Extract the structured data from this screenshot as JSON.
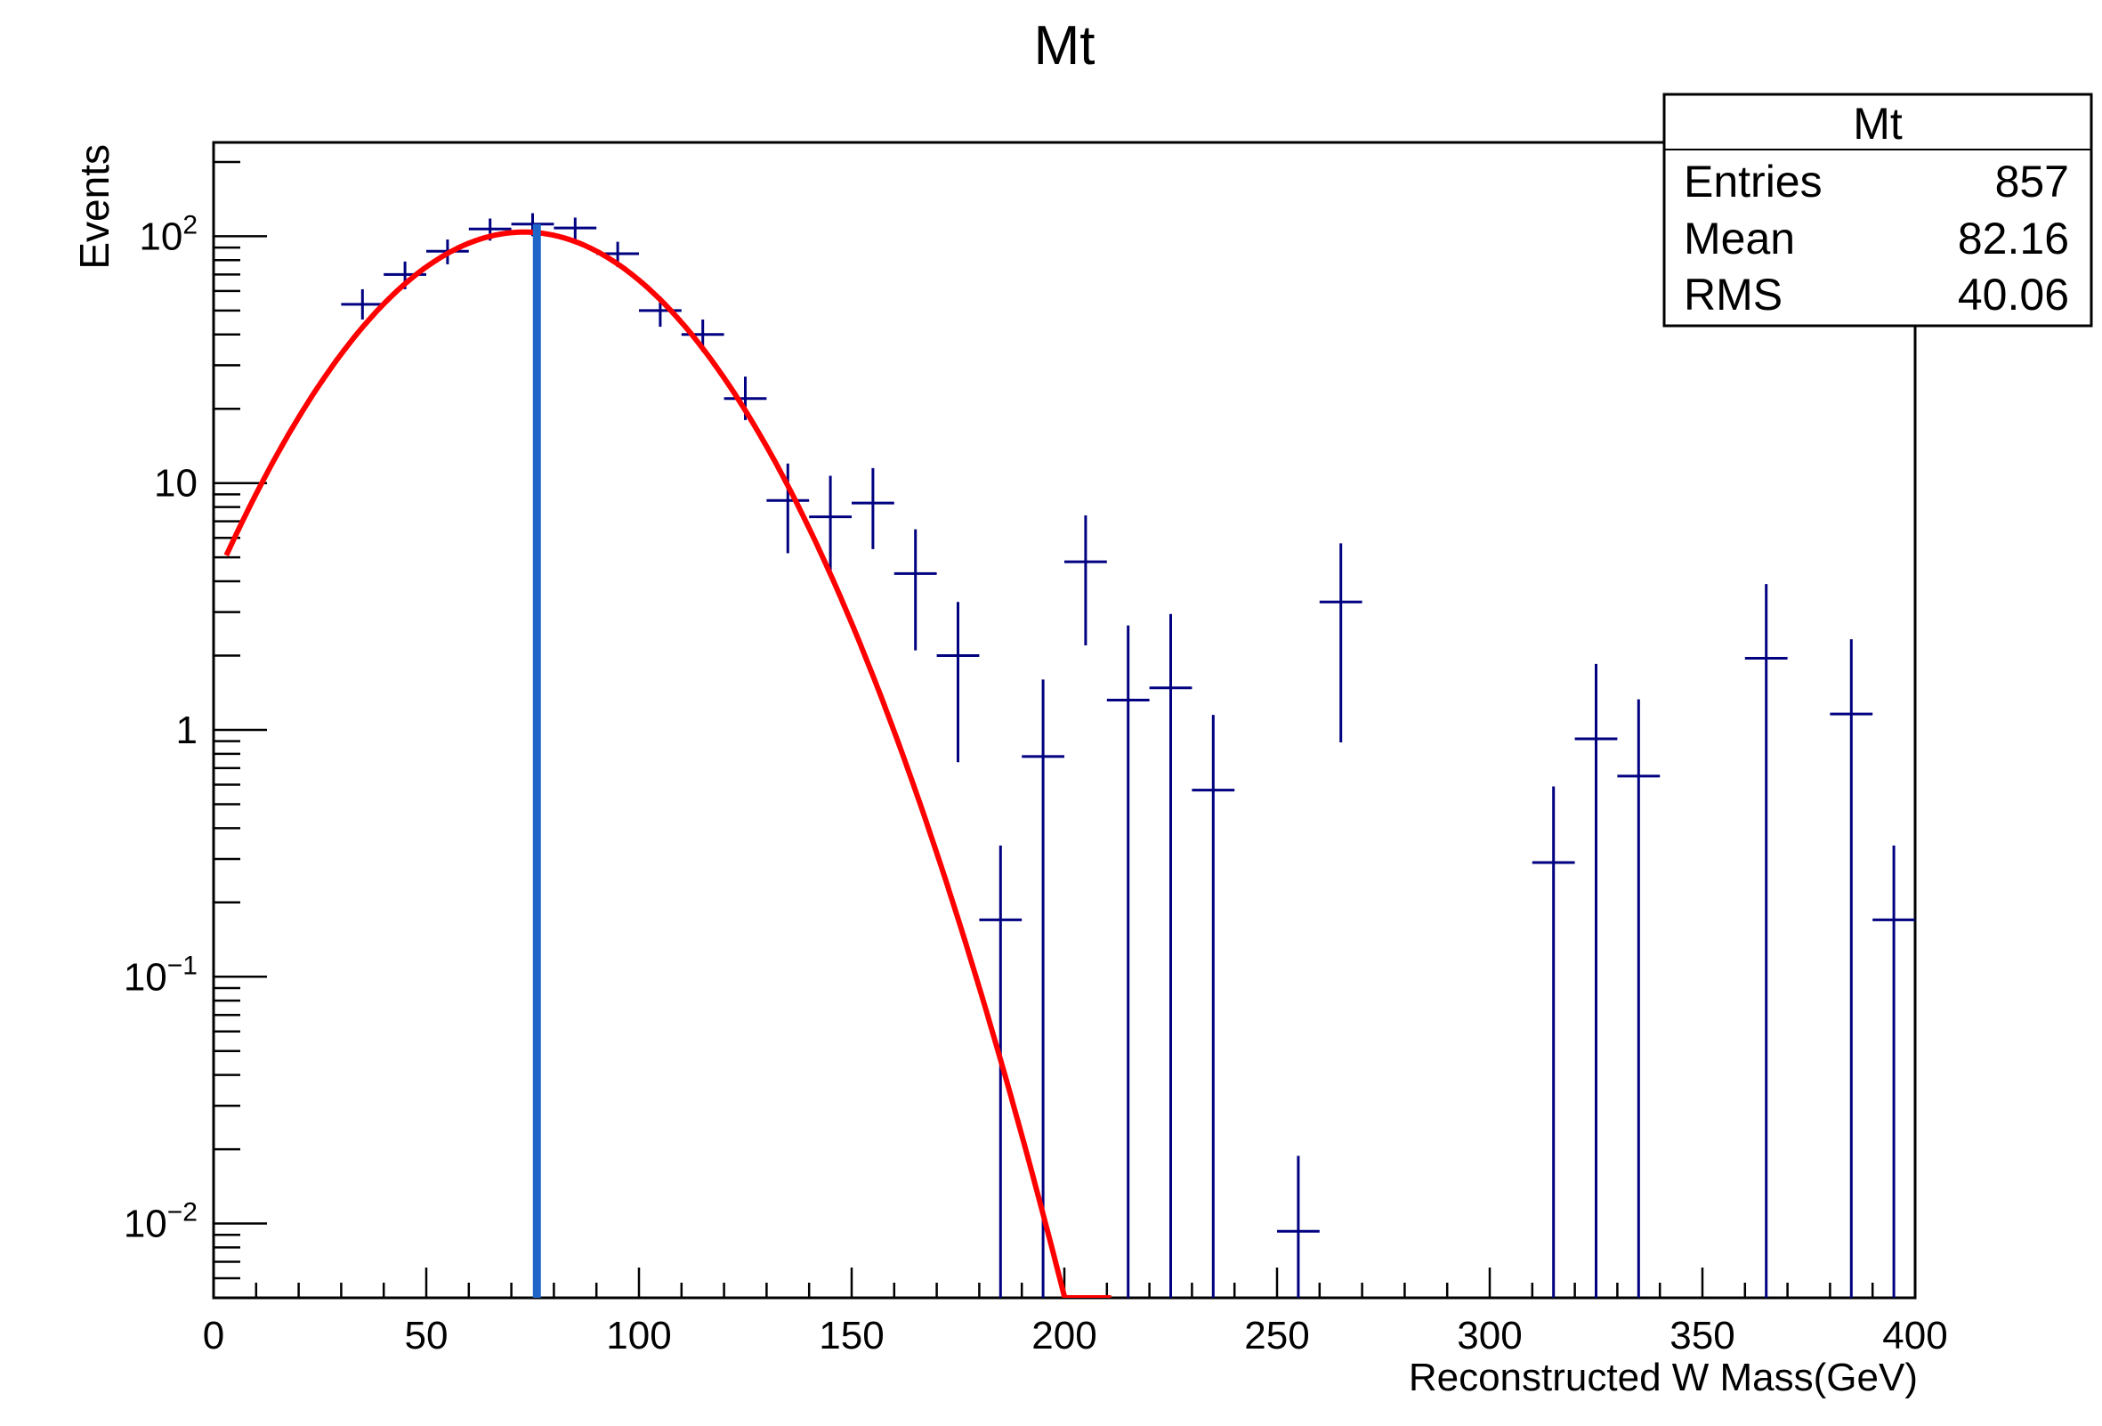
{
  "chart_data": {
    "type": "scatter",
    "title": "Mt",
    "xlabel": "Reconstructed W Mass(GeV)",
    "ylabel": "Events",
    "xlim": [
      0,
      400
    ],
    "ylim": [
      0.005,
      240
    ],
    "y_scale": "log",
    "grid": false,
    "x_ticks": [
      "0",
      "50",
      "100",
      "150",
      "200",
      "250",
      "300",
      "350",
      "400"
    ],
    "y_ticks": [
      {
        "value": 0.01,
        "base": "10",
        "exp": "−2"
      },
      {
        "value": 0.1,
        "base": "10",
        "exp": "−1"
      },
      {
        "value": 1,
        "base": "1",
        "exp": ""
      },
      {
        "value": 10,
        "base": "10",
        "exp": ""
      },
      {
        "value": 100,
        "base": "10",
        "exp": "2"
      }
    ],
    "stats_box": {
      "title": "Mt",
      "rows": [
        {
          "label": "Entries",
          "value": "857"
        },
        {
          "label": "Mean",
          "value": "82.16"
        },
        {
          "label": "RMS",
          "value": "40.06"
        }
      ],
      "position": "top-right"
    },
    "series": [
      {
        "kind": "histogram-points",
        "color": "#000080",
        "bin_width": 10,
        "points": [
          {
            "x": 35,
            "y": 53,
            "lo": 46,
            "hi": 61
          },
          {
            "x": 45,
            "y": 70,
            "lo": 61,
            "hi": 79
          },
          {
            "x": 55,
            "y": 87,
            "lo": 77,
            "hi": 97
          },
          {
            "x": 65,
            "y": 107,
            "lo": 96,
            "hi": 118
          },
          {
            "x": 75,
            "y": 112,
            "lo": 100,
            "hi": 124
          },
          {
            "x": 85,
            "y": 108,
            "lo": 97,
            "hi": 119
          },
          {
            "x": 95,
            "y": 85,
            "lo": 75,
            "hi": 95
          },
          {
            "x": 105,
            "y": 50,
            "lo": 43,
            "hi": 57
          },
          {
            "x": 115,
            "y": 40,
            "lo": 34,
            "hi": 46
          },
          {
            "x": 125,
            "y": 22,
            "lo": 18,
            "hi": 27
          },
          {
            "x": 135,
            "y": 8.5,
            "lo": 5.2,
            "hi": 12
          },
          {
            "x": 145,
            "y": 7.3,
            "lo": 4.2,
            "hi": 10.7
          },
          {
            "x": 155,
            "y": 8.3,
            "lo": 5.4,
            "hi": 11.5
          },
          {
            "x": 165,
            "y": 4.3,
            "lo": 2.1,
            "hi": 6.5
          },
          {
            "x": 175,
            "y": 2.0,
            "lo": 0.74,
            "hi": 3.3
          },
          {
            "x": 185,
            "y": 0.17,
            "lo": 0.005,
            "hi": 0.34
          },
          {
            "x": 195,
            "y": 0.78,
            "lo": 0.005,
            "hi": 1.6
          },
          {
            "x": 205,
            "y": 4.8,
            "lo": 2.2,
            "hi": 7.4
          },
          {
            "x": 215,
            "y": 1.32,
            "lo": 0.005,
            "hi": 2.65
          },
          {
            "x": 225,
            "y": 1.48,
            "lo": 0.005,
            "hi": 2.95
          },
          {
            "x": 235,
            "y": 0.57,
            "lo": 0.005,
            "hi": 1.15
          },
          {
            "x": 255,
            "y": 0.0093,
            "lo": 0.005,
            "hi": 0.0188
          },
          {
            "x": 265,
            "y": 3.3,
            "lo": 0.89,
            "hi": 5.7
          },
          {
            "x": 315,
            "y": 0.29,
            "lo": 0.005,
            "hi": 0.59
          },
          {
            "x": 325,
            "y": 0.92,
            "lo": 0.005,
            "hi": 1.85
          },
          {
            "x": 335,
            "y": 0.65,
            "lo": 0.005,
            "hi": 1.33
          },
          {
            "x": 365,
            "y": 1.95,
            "lo": 0.005,
            "hi": 3.9
          },
          {
            "x": 385,
            "y": 1.16,
            "lo": 0.005,
            "hi": 2.33
          },
          {
            "x": 395,
            "y": 0.17,
            "lo": 0.005,
            "hi": 0.34
          }
        ]
      },
      {
        "kind": "fit-curve",
        "color": "#ff0000",
        "shape": "gaussian",
        "amplitude": 104,
        "mean": 73,
        "sigma": 28.5,
        "x_range": [
          3,
          211
        ]
      },
      {
        "kind": "vertical-line",
        "color": "#1f66c8",
        "x": 76
      }
    ]
  }
}
